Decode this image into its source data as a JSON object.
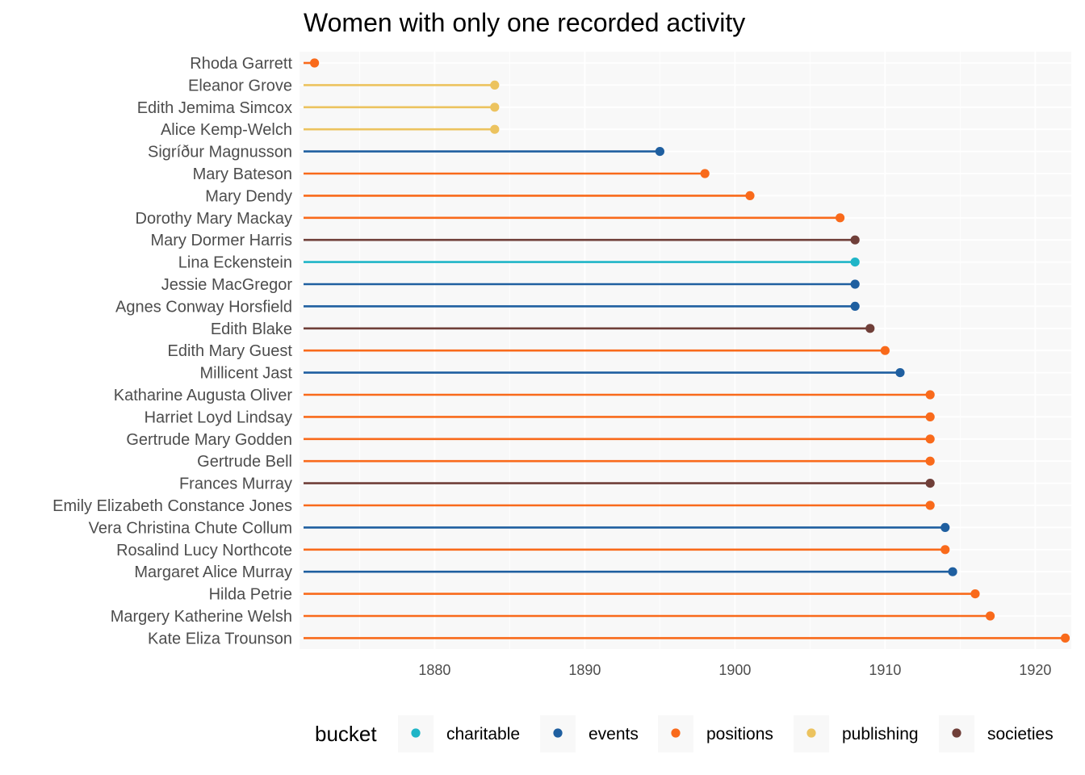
{
  "chart_data": {
    "type": "lollipop",
    "title": "Women with only one recorded activity",
    "xlabel": "",
    "ylabel": "",
    "xlim": [
      1871,
      1922.4
    ],
    "xticks": [
      1880,
      1890,
      1900,
      1910,
      1920
    ],
    "grid": true,
    "legend": {
      "title": "bucket",
      "position": "bottom",
      "entries": [
        "charitable",
        "events",
        "positions",
        "publishing",
        "societies"
      ]
    },
    "colors": {
      "charitable": "#1fb5c7",
      "events": "#1f5fa0",
      "positions": "#f96a1b",
      "publishing": "#ecc35f",
      "societies": "#703f39"
    },
    "points": [
      {
        "name": "Rhoda Garrett",
        "year": 1872,
        "bucket": "positions"
      },
      {
        "name": "Eleanor Grove",
        "year": 1884,
        "bucket": "publishing"
      },
      {
        "name": "Edith Jemima Simcox",
        "year": 1884,
        "bucket": "publishing"
      },
      {
        "name": "Alice Kemp-Welch",
        "year": 1884,
        "bucket": "publishing"
      },
      {
        "name": "Sigríður Magnusson",
        "year": 1895,
        "bucket": "events"
      },
      {
        "name": "Mary Bateson",
        "year": 1898,
        "bucket": "positions"
      },
      {
        "name": "Mary Dendy",
        "year": 1901,
        "bucket": "positions"
      },
      {
        "name": "Dorothy Mary Mackay",
        "year": 1907,
        "bucket": "positions"
      },
      {
        "name": "Mary Dormer Harris",
        "year": 1908,
        "bucket": "societies"
      },
      {
        "name": "Lina Eckenstein",
        "year": 1908,
        "bucket": "charitable"
      },
      {
        "name": "Jessie MacGregor",
        "year": 1908,
        "bucket": "events"
      },
      {
        "name": "Agnes Conway Horsfield",
        "year": 1908,
        "bucket": "events"
      },
      {
        "name": "Edith Blake",
        "year": 1909,
        "bucket": "societies"
      },
      {
        "name": "Edith Mary Guest",
        "year": 1910,
        "bucket": "positions"
      },
      {
        "name": "Millicent Jast",
        "year": 1911,
        "bucket": "events"
      },
      {
        "name": "Katharine Augusta Oliver",
        "year": 1913,
        "bucket": "positions"
      },
      {
        "name": "Harriet Loyd Lindsay",
        "year": 1913,
        "bucket": "positions"
      },
      {
        "name": "Gertrude Mary Godden",
        "year": 1913,
        "bucket": "positions"
      },
      {
        "name": "Gertrude Bell",
        "year": 1913,
        "bucket": "positions"
      },
      {
        "name": "Frances Murray",
        "year": 1913,
        "bucket": "societies"
      },
      {
        "name": "Emily Elizabeth Constance Jones",
        "year": 1913,
        "bucket": "positions"
      },
      {
        "name": "Vera Christina Chute Collum",
        "year": 1914,
        "bucket": "events"
      },
      {
        "name": "Rosalind Lucy Northcote",
        "year": 1914,
        "bucket": "positions"
      },
      {
        "name": "Margaret Alice Murray",
        "year": 1914.5,
        "bucket": "events"
      },
      {
        "name": "Hilda Petrie",
        "year": 1916,
        "bucket": "positions"
      },
      {
        "name": "Margery Katherine Welsh",
        "year": 1917,
        "bucket": "positions"
      },
      {
        "name": "Kate Eliza Trounson",
        "year": 1922,
        "bucket": "positions"
      }
    ]
  }
}
